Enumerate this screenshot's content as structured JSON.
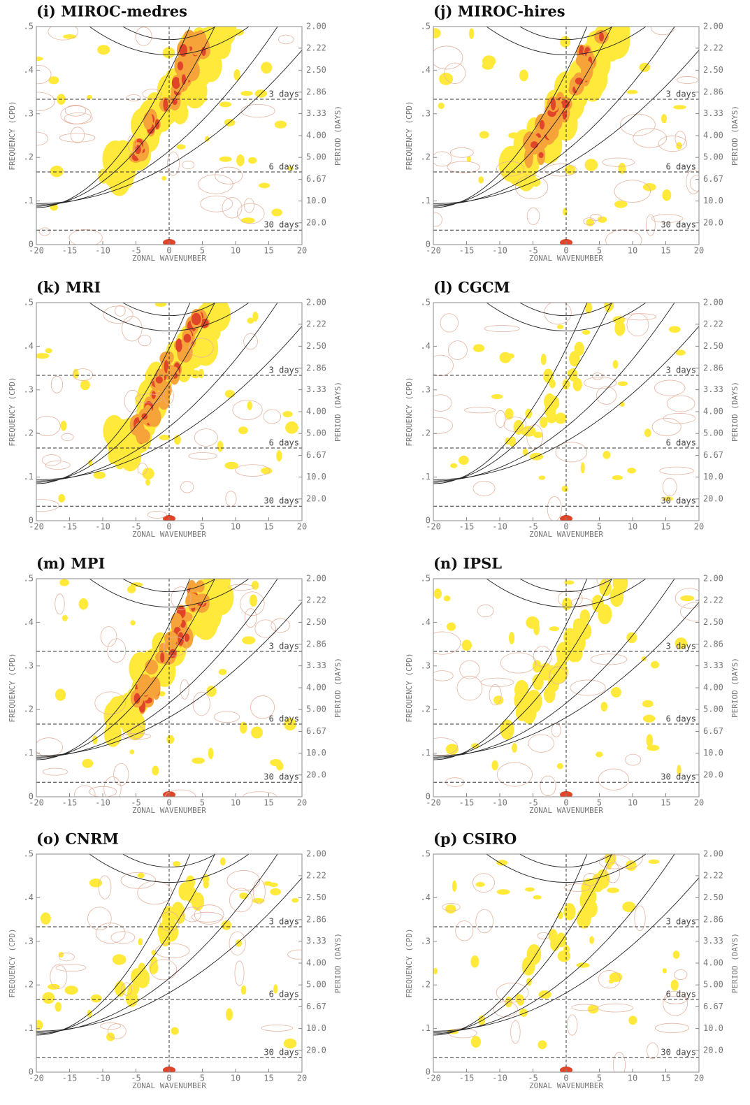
{
  "chart_data": [
    {
      "type": "contour",
      "title": "(i) MIROC-medres",
      "xlabel": "ZONAL WAVENUMBER",
      "ylabel": "FREQUENCY (CPD)",
      "y2label": "PERIOD (DAYS)",
      "xlim": [
        -20,
        20
      ],
      "xticks": [
        -20,
        -15,
        -10,
        -5,
        0,
        5,
        10,
        15,
        20
      ],
      "ylim": [
        0,
        0.5
      ],
      "yticks": [
        0,
        {
          "value": 0.1,
          "label": ".1"
        },
        {
          "value": 0.2,
          "label": ".2"
        },
        {
          "value": 0.3,
          "label": ".3"
        },
        {
          "value": 0.4,
          "label": ".4"
        },
        {
          "value": 0.5,
          "label": ".5"
        }
      ],
      "y2scale": "reciprocal",
      "y2ticks": [
        {
          "value": 2,
          "label": "2.00"
        },
        {
          "value": 2.22,
          "label": "2.22"
        },
        {
          "value": 2.5,
          "label": "2.50"
        },
        {
          "value": 2.86,
          "label": "2.86"
        },
        {
          "value": 3.33,
          "label": "3.33"
        },
        {
          "value": 4,
          "label": "4.00"
        },
        {
          "value": 5,
          "label": "5.00"
        },
        {
          "value": 6.67,
          "label": "6.67"
        },
        {
          "value": 10,
          "label": "10.0"
        },
        {
          "value": 20,
          "label": "20.0"
        }
      ],
      "period_lines": [
        {
          "value": 3,
          "label": "3 days"
        },
        {
          "value": 6,
          "label": "6 days"
        },
        {
          "value": 30,
          "label": "30 days"
        }
      ]
    },
    {
      "type": "contour",
      "title": "(j) MIROC-hires",
      "xlabel": "ZONAL WAVENUMBER",
      "ylabel": "FREQUENCY (CPD)",
      "y2label": "PERIOD (DAYS)",
      "xlim": [
        -20,
        20
      ],
      "xticks": [
        -20,
        -15,
        -10,
        -5,
        0,
        5,
        10,
        15,
        20
      ],
      "ylim": [
        0,
        0.5
      ],
      "yticks": [
        0,
        {
          "value": 0.1,
          "label": ".1"
        },
        {
          "value": 0.2,
          "label": ".2"
        },
        {
          "value": 0.3,
          "label": ".3"
        },
        {
          "value": 0.4,
          "label": ".4"
        },
        {
          "value": 0.5,
          "label": ".5"
        }
      ],
      "y2scale": "reciprocal",
      "y2ticks": [
        {
          "value": 2,
          "label": "2.00"
        },
        {
          "value": 2.22,
          "label": "2.22"
        },
        {
          "value": 2.5,
          "label": "2.50"
        },
        {
          "value": 2.86,
          "label": "2.86"
        },
        {
          "value": 3.33,
          "label": "3.33"
        },
        {
          "value": 4,
          "label": "4.00"
        },
        {
          "value": 5,
          "label": "5.00"
        },
        {
          "value": 6.67,
          "label": "6.67"
        },
        {
          "value": 10,
          "label": "10.0"
        },
        {
          "value": 20,
          "label": "20.0"
        }
      ],
      "period_lines": [
        {
          "value": 3,
          "label": "3 days"
        },
        {
          "value": 6,
          "label": "6 days"
        },
        {
          "value": 30,
          "label": "30 days"
        }
      ]
    },
    {
      "type": "contour",
      "title": "(k) MRI",
      "xlabel": "ZONAL WAVENUMBER",
      "ylabel": "FREQUENCY (CPD)",
      "y2label": "PERIOD (DAYS)",
      "xlim": [
        -20,
        20
      ],
      "xticks": [
        -20,
        -15,
        -10,
        -5,
        0,
        5,
        10,
        15,
        20
      ],
      "ylim": [
        0,
        0.5
      ],
      "yticks": [
        0,
        {
          "value": 0.1,
          "label": ".1"
        },
        {
          "value": 0.2,
          "label": ".2"
        },
        {
          "value": 0.3,
          "label": ".3"
        },
        {
          "value": 0.4,
          "label": ".4"
        },
        {
          "value": 0.5,
          "label": ".5"
        }
      ],
      "y2scale": "reciprocal",
      "y2ticks": [
        {
          "value": 2,
          "label": "2.00"
        },
        {
          "value": 2.22,
          "label": "2.22"
        },
        {
          "value": 2.5,
          "label": "2.50"
        },
        {
          "value": 2.86,
          "label": "2.86"
        },
        {
          "value": 3.33,
          "label": "3.33"
        },
        {
          "value": 4,
          "label": "4.00"
        },
        {
          "value": 5,
          "label": "5.00"
        },
        {
          "value": 6.67,
          "label": "6.67"
        },
        {
          "value": 10,
          "label": "10.0"
        },
        {
          "value": 20,
          "label": "20.0"
        }
      ],
      "period_lines": [
        {
          "value": 3,
          "label": "3 days"
        },
        {
          "value": 6,
          "label": "6 days"
        },
        {
          "value": 30,
          "label": "30 days"
        }
      ]
    },
    {
      "type": "contour",
      "title": "(l) CGCM",
      "xlabel": "ZONAL WAVENUMBER",
      "ylabel": "FREQUENCY (CPD)",
      "y2label": "PERIOD (DAYS)",
      "xlim": [
        -20,
        20
      ],
      "xticks": [
        -20,
        -15,
        -10,
        -5,
        0,
        5,
        10,
        15,
        20
      ],
      "ylim": [
        0,
        0.5
      ],
      "yticks": [
        0,
        {
          "value": 0.1,
          "label": ".1"
        },
        {
          "value": 0.2,
          "label": ".2"
        },
        {
          "value": 0.3,
          "label": ".3"
        },
        {
          "value": 0.4,
          "label": ".4"
        },
        {
          "value": 0.5,
          "label": ".5"
        }
      ],
      "y2scale": "reciprocal",
      "y2ticks": [
        {
          "value": 2,
          "label": "2.00"
        },
        {
          "value": 2.22,
          "label": "2.22"
        },
        {
          "value": 2.5,
          "label": "2.50"
        },
        {
          "value": 2.86,
          "label": "2.86"
        },
        {
          "value": 3.33,
          "label": "3.33"
        },
        {
          "value": 4,
          "label": "4.00"
        },
        {
          "value": 5,
          "label": "5.00"
        },
        {
          "value": 6.67,
          "label": "6.67"
        },
        {
          "value": 10,
          "label": "10.0"
        },
        {
          "value": 20,
          "label": "20.0"
        }
      ],
      "period_lines": [
        {
          "value": 3,
          "label": "3 days"
        },
        {
          "value": 6,
          "label": "6 days"
        },
        {
          "value": 30,
          "label": "30 days"
        }
      ]
    },
    {
      "type": "contour",
      "title": "(m) MPI",
      "xlabel": "ZONAL WAVENUMBER",
      "ylabel": "FREQUENCY (CPD)",
      "y2label": "PERIOD (DAYS)",
      "xlim": [
        -20,
        20
      ],
      "xticks": [
        -20,
        -15,
        -10,
        -5,
        0,
        5,
        10,
        15,
        20
      ],
      "ylim": [
        0,
        0.5
      ],
      "yticks": [
        0,
        {
          "value": 0.1,
          "label": ".1"
        },
        {
          "value": 0.2,
          "label": ".2"
        },
        {
          "value": 0.3,
          "label": ".3"
        },
        {
          "value": 0.4,
          "label": ".4"
        },
        {
          "value": 0.5,
          "label": ".5"
        }
      ],
      "y2scale": "reciprocal",
      "y2ticks": [
        {
          "value": 2,
          "label": "2.00"
        },
        {
          "value": 2.22,
          "label": "2.22"
        },
        {
          "value": 2.5,
          "label": "2.50"
        },
        {
          "value": 2.86,
          "label": "2.86"
        },
        {
          "value": 3.33,
          "label": "3.33"
        },
        {
          "value": 4,
          "label": "4.00"
        },
        {
          "value": 5,
          "label": "5.00"
        },
        {
          "value": 6.67,
          "label": "6.67"
        },
        {
          "value": 10,
          "label": "10.0"
        },
        {
          "value": 20,
          "label": "20.0"
        }
      ],
      "period_lines": [
        {
          "value": 3,
          "label": "3 days"
        },
        {
          "value": 6,
          "label": "6 days"
        },
        {
          "value": 30,
          "label": "30 days"
        }
      ]
    },
    {
      "type": "contour",
      "title": "(n) IPSL",
      "xlabel": "ZONAL WAVENUMBER",
      "ylabel": "FREQUENCY (CPD)",
      "y2label": "PERIOD (DAYS)",
      "xlim": [
        -20,
        20
      ],
      "xticks": [
        -20,
        -15,
        -10,
        -5,
        0,
        5,
        10,
        15,
        20
      ],
      "ylim": [
        0,
        0.5
      ],
      "yticks": [
        0,
        {
          "value": 0.1,
          "label": ".1"
        },
        {
          "value": 0.2,
          "label": ".2"
        },
        {
          "value": 0.3,
          "label": ".3"
        },
        {
          "value": 0.4,
          "label": ".4"
        },
        {
          "value": 0.5,
          "label": ".5"
        }
      ],
      "y2scale": "reciprocal",
      "y2ticks": [
        {
          "value": 2,
          "label": "2.00"
        },
        {
          "value": 2.22,
          "label": "2.22"
        },
        {
          "value": 2.5,
          "label": "2.50"
        },
        {
          "value": 2.86,
          "label": "2.86"
        },
        {
          "value": 3.33,
          "label": "3.33"
        },
        {
          "value": 4,
          "label": "4.00"
        },
        {
          "value": 5,
          "label": "5.00"
        },
        {
          "value": 6.67,
          "label": "6.67"
        },
        {
          "value": 10,
          "label": "10.0"
        },
        {
          "value": 20,
          "label": "20.0"
        }
      ],
      "period_lines": [
        {
          "value": 3,
          "label": "3 days"
        },
        {
          "value": 6,
          "label": "6 days"
        },
        {
          "value": 30,
          "label": "30 days"
        }
      ]
    },
    {
      "type": "contour",
      "title": "(o) CNRM",
      "xlabel": "ZONAL WAVENUMBER",
      "ylabel": "FREQUENCY (CPD)",
      "y2label": "PERIOD (DAYS)",
      "xlim": [
        -20,
        20
      ],
      "xticks": [
        -20,
        -15,
        -10,
        -5,
        0,
        5,
        10,
        15,
        20
      ],
      "ylim": [
        0,
        0.5
      ],
      "yticks": [
        0,
        {
          "value": 0.1,
          "label": ".1"
        },
        {
          "value": 0.2,
          "label": ".2"
        },
        {
          "value": 0.3,
          "label": ".3"
        },
        {
          "value": 0.4,
          "label": ".4"
        },
        {
          "value": 0.5,
          "label": ".5"
        }
      ],
      "y2scale": "reciprocal",
      "y2ticks": [
        {
          "value": 2,
          "label": "2.00"
        },
        {
          "value": 2.22,
          "label": "2.22"
        },
        {
          "value": 2.5,
          "label": "2.50"
        },
        {
          "value": 2.86,
          "label": "2.86"
        },
        {
          "value": 3.33,
          "label": "3.33"
        },
        {
          "value": 4,
          "label": "4.00"
        },
        {
          "value": 5,
          "label": "5.00"
        },
        {
          "value": 6.67,
          "label": "6.67"
        },
        {
          "value": 10,
          "label": "10.0"
        },
        {
          "value": 20,
          "label": "20.0"
        }
      ],
      "period_lines": [
        {
          "value": 3,
          "label": "3 days"
        },
        {
          "value": 6,
          "label": "6 days"
        },
        {
          "value": 30,
          "label": "30 days"
        }
      ]
    },
    {
      "type": "contour",
      "title": "(p) CSIRO",
      "xlabel": "ZONAL WAVENUMBER",
      "ylabel": "FREQUENCY (CPD)",
      "y2label": "PERIOD (DAYS)",
      "xlim": [
        -20,
        20
      ],
      "xticks": [
        -20,
        -15,
        -10,
        -5,
        0,
        5,
        10,
        15,
        20
      ],
      "ylim": [
        0,
        0.5
      ],
      "yticks": [
        0,
        {
          "value": 0.1,
          "label": ".1"
        },
        {
          "value": 0.2,
          "label": ".2"
        },
        {
          "value": 0.3,
          "label": ".3"
        },
        {
          "value": 0.4,
          "label": ".4"
        },
        {
          "value": 0.5,
          "label": ".5"
        }
      ],
      "y2scale": "reciprocal",
      "y2ticks": [
        {
          "value": 2,
          "label": "2.00"
        },
        {
          "value": 2.22,
          "label": "2.22"
        },
        {
          "value": 2.5,
          "label": "2.50"
        },
        {
          "value": 2.86,
          "label": "2.86"
        },
        {
          "value": 3.33,
          "label": "3.33"
        },
        {
          "value": 4,
          "label": "4.00"
        },
        {
          "value": 5,
          "label": "5.00"
        },
        {
          "value": 6.67,
          "label": "6.67"
        },
        {
          "value": 10,
          "label": "10.0"
        },
        {
          "value": 20,
          "label": "20.0"
        }
      ],
      "period_lines": [
        {
          "value": 3,
          "label": "3 days"
        },
        {
          "value": 6,
          "label": "6 days"
        },
        {
          "value": 30,
          "label": "30 days"
        }
      ]
    }
  ]
}
